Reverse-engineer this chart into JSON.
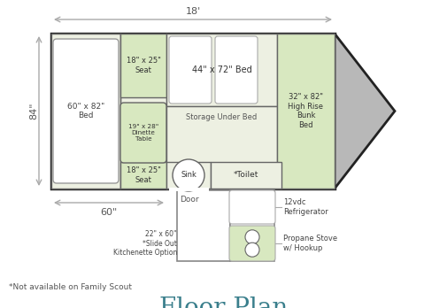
{
  "bg_color": "#ffffff",
  "floor_color": "#edf0e2",
  "wall_color": "#222222",
  "line_color": "#666666",
  "green_seat": "#d8e8c0",
  "green_bunk": "#d8e8c0",
  "gray_nose": "#b8b8b8",
  "title": "Floor Plan",
  "title_color": "#3a7f8c",
  "title_fontsize": 20,
  "note": "*Not available on Family Scout",
  "dim_18": "18'",
  "dim_84": "84\"",
  "dim_60": "60\"",
  "label_bed_left": "60\" x 82\"\nBed",
  "label_seat_top": "18\" x 25\"\nSeat",
  "label_center_bed": "44\" x 72\" Bed",
  "label_storage": "Storage Under Bed",
  "label_dinette": "19\" x 28\"\nDinette\nTable",
  "label_seat_bot": "18\" x 25\"\nSeat",
  "label_sink": "Sink",
  "label_toilet": "*Toilet",
  "label_bunk": "32\" x 82\"\nHigh Rise\nBunk\nBed",
  "label_door": "Door",
  "label_fridge": "12vdc\nRefrigerator",
  "label_slideout": "22\" x 60\"\n*Slide Out\nKitchenette Option",
  "label_stove": "Propane Stove\nw/ Hookup"
}
